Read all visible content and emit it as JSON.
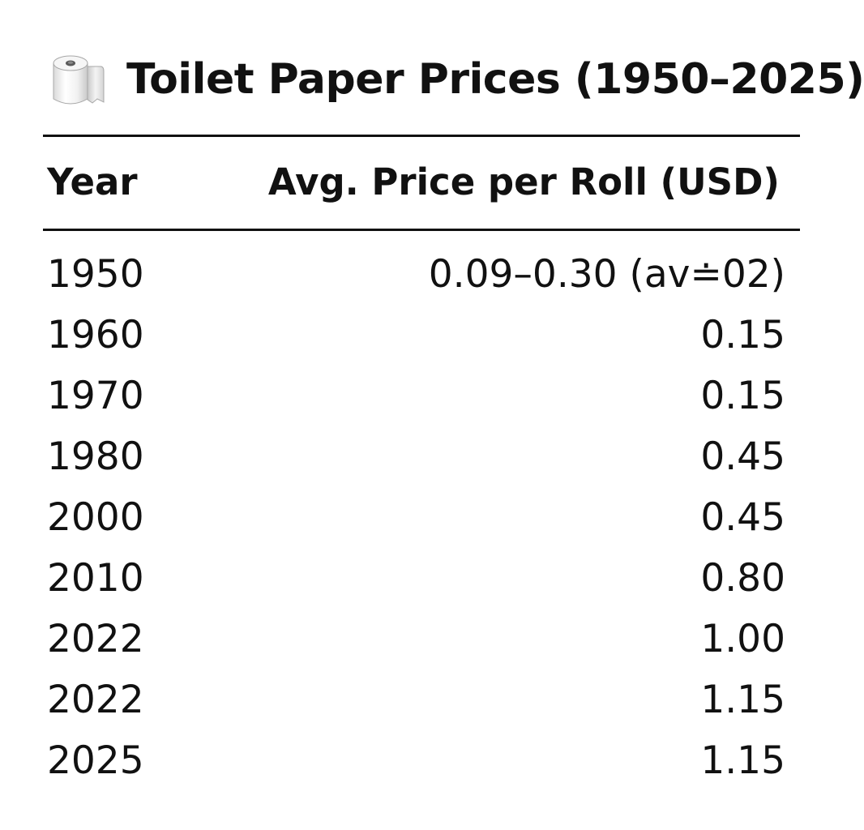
{
  "icon": "toilet-paper-roll-icon",
  "title": "Toilet Paper Prices (1950–2025)",
  "chart_data": {
    "type": "table",
    "title": "Toilet Paper Prices (1950–2025)",
    "columns": [
      "Year",
      "Avg. Price per Roll (USD)"
    ],
    "rows": [
      [
        "1950",
        "0.09–0.30 (av≐02)"
      ],
      [
        "1960",
        "0.15"
      ],
      [
        "1970",
        "0.15"
      ],
      [
        "1980",
        "0.45"
      ],
      [
        "2000",
        "0.45"
      ],
      [
        "2010",
        "0.80"
      ],
      [
        "2022",
        "1.00"
      ],
      [
        "2022",
        "1.15"
      ],
      [
        "2025",
        "1.15"
      ]
    ]
  }
}
